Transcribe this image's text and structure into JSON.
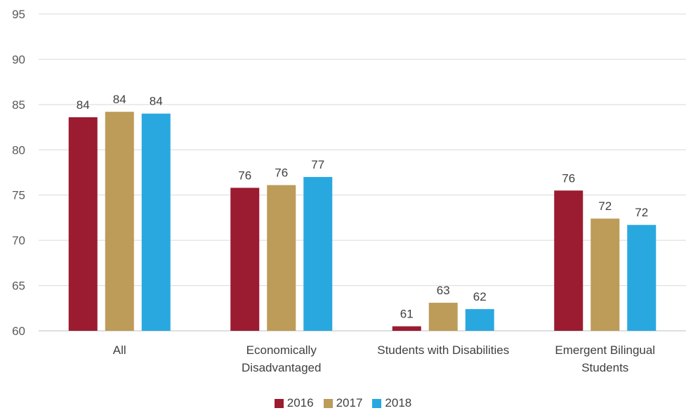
{
  "chart_data": {
    "type": "bar",
    "categories": [
      [
        "All"
      ],
      [
        "Economically",
        "Disadvantaged"
      ],
      [
        "Students with Disabilities"
      ],
      [
        "Emergent Bilingual",
        "Students"
      ]
    ],
    "series": [
      {
        "name": "2016",
        "color": "#9B1B30",
        "values": [
          83.6,
          75.8,
          60.5,
          75.5
        ],
        "labels": [
          "84",
          "76",
          "61",
          "76"
        ]
      },
      {
        "name": "2017",
        "color": "#BD9B58",
        "values": [
          84.2,
          76.1,
          63.1,
          72.4
        ],
        "labels": [
          "84",
          "76",
          "63",
          "72"
        ]
      },
      {
        "name": "2018",
        "color": "#29A8E0",
        "values": [
          84.0,
          77.0,
          62.4,
          71.7
        ],
        "labels": [
          "84",
          "77",
          "62",
          "72"
        ]
      }
    ],
    "ylim": [
      60,
      95
    ],
    "yticks": [
      60,
      65,
      70,
      75,
      80,
      85,
      90,
      95
    ],
    "grid": true,
    "legend_position": "bottom-center"
  }
}
